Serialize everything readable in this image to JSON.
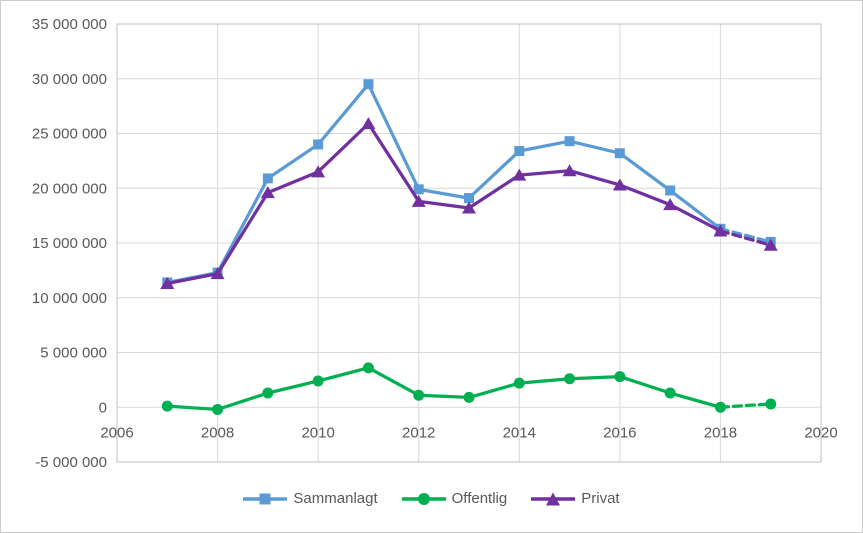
{
  "chart_data": {
    "type": "line",
    "title": "",
    "xlabel": "",
    "ylabel": "",
    "x": [
      2007,
      2008,
      2009,
      2010,
      2011,
      2012,
      2013,
      2014,
      2015,
      2016,
      2017,
      2018,
      2019
    ],
    "series": [
      {
        "name": "Sammanlagt",
        "color": "#5B9BD5",
        "marker": "square",
        "values": [
          11400000,
          12300000,
          20900000,
          24000000,
          29500000,
          19900000,
          19100000,
          23400000,
          24300000,
          23200000,
          19800000,
          16300000,
          15100000
        ]
      },
      {
        "name": "Offentlig",
        "color": "#00B050",
        "marker": "circle",
        "values": [
          100000,
          -200000,
          1300000,
          2400000,
          3600000,
          1100000,
          900000,
          2200000,
          2600000,
          2800000,
          1300000,
          0,
          300000
        ]
      },
      {
        "name": "Privat",
        "color": "#7030A0",
        "marker": "triangle",
        "values": [
          11300000,
          12200000,
          19600000,
          21500000,
          25900000,
          18800000,
          18200000,
          21200000,
          21600000,
          20300000,
          18500000,
          16100000,
          14800000
        ]
      }
    ],
    "dashed_from_x": 2018,
    "xlim": [
      2006,
      2020
    ],
    "ylim": [
      -5000000,
      35000000
    ],
    "x_ticks": {
      "values": [
        2006,
        2008,
        2010,
        2012,
        2014,
        2016,
        2018,
        2020
      ],
      "labels": [
        "2006",
        "2008",
        "2010",
        "2012",
        "2014",
        "2016",
        "2018",
        "2020"
      ]
    },
    "y_ticks": {
      "values": [
        35000000,
        30000000,
        25000000,
        20000000,
        15000000,
        10000000,
        5000000,
        0,
        -5000000
      ],
      "labels": [
        "35 000 000",
        "30 000 000",
        "25 000 000",
        "20 000 000",
        "15 000 000",
        "10 000 000",
        "5 000 000",
        "0",
        "-5 000 000"
      ]
    },
    "legend_position": "bottom",
    "grid": true
  },
  "styles": {
    "text_color": "#595959",
    "gridline_color": "#D9D9D9",
    "axis_color": "#BFBFBF",
    "background": "#FFFFFF",
    "outer_border_color": "#CBCBCB"
  }
}
